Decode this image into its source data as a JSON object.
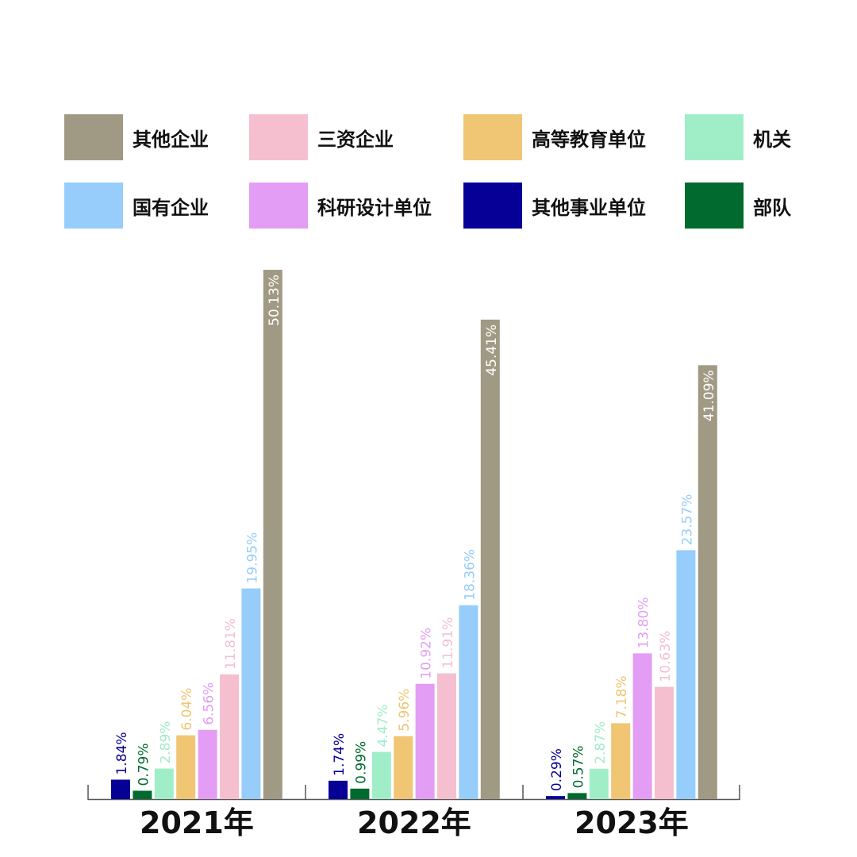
{
  "legend": [
    {
      "label": "其他企业",
      "color": "#a09a84"
    },
    {
      "label": "三资企业",
      "color": "#f5bfd0"
    },
    {
      "label": "高等教育单位",
      "color": "#f0c573"
    },
    {
      "label": "机关",
      "color": "#a0eec8"
    },
    {
      "label": "国有企业",
      "color": "#96cdfb"
    },
    {
      "label": "科研设计单位",
      "color": "#e49df4"
    },
    {
      "label": "其他事业单位",
      "color": "#070097"
    },
    {
      "label": "部队",
      "color": "#016a2e"
    }
  ],
  "chart_data": {
    "type": "bar",
    "title": "",
    "xlabel": "",
    "ylabel": "",
    "ylim": [
      0,
      50.13
    ],
    "grid": false,
    "legend_position": "top",
    "categories": [
      "2021年",
      "2022年",
      "2023年"
    ],
    "series_order": [
      "其他事业单位",
      "部队",
      "机关",
      "高等教育单位",
      "科研设计单位",
      "三资企业",
      "国有企业",
      "其他企业"
    ],
    "groups": [
      {
        "category": "2021年",
        "bars": [
          {
            "series": "其他事业单位",
            "value": 1.84,
            "label": "1.84%",
            "color": "#070097"
          },
          {
            "series": "部队",
            "value": 0.79,
            "label": "0.79%",
            "color": "#016a2e"
          },
          {
            "series": "机关",
            "value": 2.89,
            "label": "2.89%",
            "color": "#a0eec8"
          },
          {
            "series": "高等教育单位",
            "value": 6.04,
            "label": "6.04%",
            "color": "#f0c573"
          },
          {
            "series": "科研设计单位",
            "value": 6.56,
            "label": "6.56%",
            "color": "#e49df4"
          },
          {
            "series": "三资企业",
            "value": 11.81,
            "label": "11.81%",
            "color": "#f5bfd0"
          },
          {
            "series": "国有企业",
            "value": 19.95,
            "label": "19.95%",
            "color": "#96cdfb"
          },
          {
            "series": "其他企业",
            "value": 50.13,
            "label": "50.13%",
            "color": "#a09a84"
          }
        ]
      },
      {
        "category": "2022年",
        "bars": [
          {
            "series": "其他事业单位",
            "value": 1.74,
            "label": "1.74%",
            "color": "#070097"
          },
          {
            "series": "部队",
            "value": 0.99,
            "label": "0.99%",
            "color": "#016a2e"
          },
          {
            "series": "机关",
            "value": 4.47,
            "label": "4.47%",
            "color": "#a0eec8"
          },
          {
            "series": "高等教育单位",
            "value": 5.96,
            "label": "5.96%",
            "color": "#f0c573"
          },
          {
            "series": "科研设计单位",
            "value": 10.92,
            "label": "10.92%",
            "color": "#e49df4"
          },
          {
            "series": "三资企业",
            "value": 11.91,
            "label": "11.91%",
            "color": "#f5bfd0"
          },
          {
            "series": "国有企业",
            "value": 18.36,
            "label": "18.36%",
            "color": "#96cdfb"
          },
          {
            "series": "其他企业",
            "value": 45.41,
            "label": "45.41%",
            "color": "#a09a84"
          }
        ]
      },
      {
        "category": "2023年",
        "bars": [
          {
            "series": "其他事业单位",
            "value": 0.29,
            "label": "0.29%",
            "color": "#070097"
          },
          {
            "series": "部队",
            "value": 0.57,
            "label": "0.57%",
            "color": "#016a2e"
          },
          {
            "series": "机关",
            "value": 2.87,
            "label": "2.87%",
            "color": "#a0eec8"
          },
          {
            "series": "高等教育单位",
            "value": 7.18,
            "label": "7.18%",
            "color": "#f0c573"
          },
          {
            "series": "科研设计单位",
            "value": 13.8,
            "label": "13.80%",
            "color": "#e49df4"
          },
          {
            "series": "三资企业",
            "value": 10.63,
            "label": "10.63%",
            "color": "#f5bfd0"
          },
          {
            "series": "国有企业",
            "value": 23.57,
            "label": "23.57%",
            "color": "#96cdfb"
          },
          {
            "series": "其他企业",
            "value": 41.09,
            "label": "41.09%",
            "color": "#a09a84"
          }
        ]
      }
    ]
  }
}
